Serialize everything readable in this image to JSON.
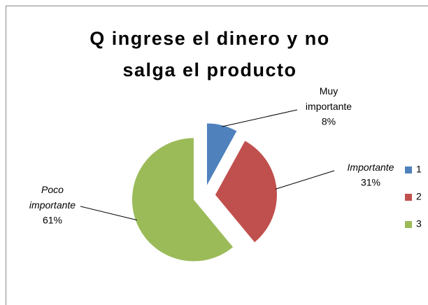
{
  "chart_data": {
    "type": "pie",
    "title": "Q ingrese el dinero y no salga el producto",
    "categories": [
      "Muy importante",
      "Importante",
      "Poco importante"
    ],
    "values": [
      8,
      31,
      61
    ],
    "value_labels": [
      "8%",
      "31%",
      "61%"
    ],
    "colors": [
      "#4f81bd",
      "#c0504d",
      "#9bbb59"
    ],
    "legend": [
      "1",
      "2",
      "3"
    ],
    "legend_position": "right"
  }
}
